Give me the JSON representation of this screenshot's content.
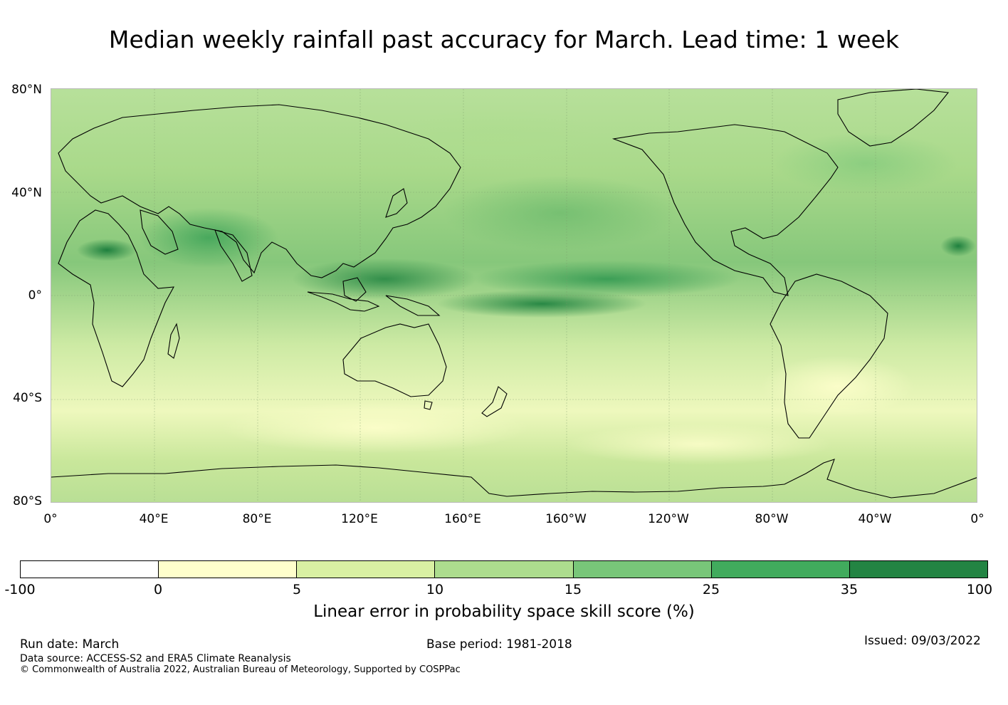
{
  "title": "Median weekly rainfall past accuracy for March. Lead time: 1 week",
  "map": {
    "lat_labels": [
      "80°N",
      "40°N",
      "0°",
      "40°S",
      "80°S"
    ],
    "lon_labels": [
      "0°",
      "40°E",
      "80°E",
      "120°E",
      "160°E",
      "160°W",
      "120°W",
      "80°W",
      "40°W",
      "0°"
    ]
  },
  "colorbar": {
    "label": "Linear error in probability space skill score (%)",
    "ticks": [
      "-100",
      "0",
      "5",
      "10",
      "15",
      "25",
      "35",
      "100"
    ],
    "colors": [
      "#ffffff",
      "#ffffcc",
      "#d9f0a3",
      "#addd8e",
      "#78c679",
      "#41ab5d",
      "#238443"
    ]
  },
  "footer": {
    "run_date": "Run date: March",
    "base_period": "Base period: 1981-2018",
    "issued": "Issued: 09/03/2022",
    "data_source": "Data source: ACCESS-S2 and ERA5 Climate Reanalysis",
    "copyright": "© Commonwealth of Australia 2022, Australian Bureau of Meteorology, Supported by COSPPac"
  }
}
